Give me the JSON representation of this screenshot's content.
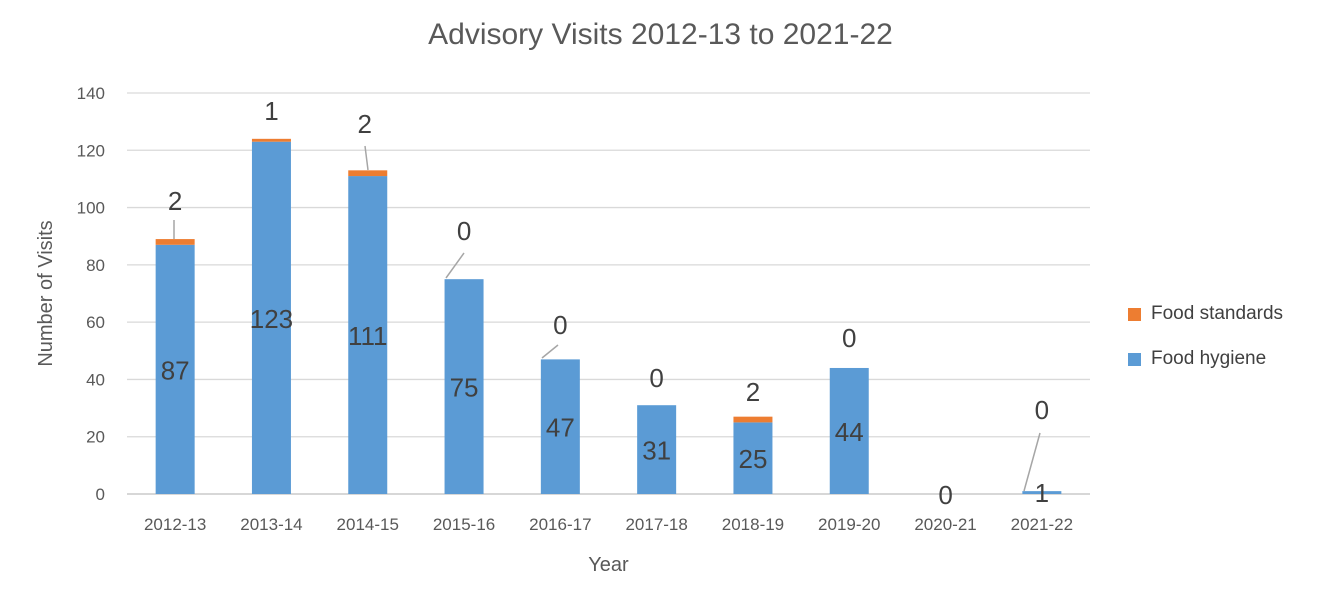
{
  "chart_data": {
    "type": "bar",
    "stacked": true,
    "title": "Advisory Visits 2012-13 to 2021-22",
    "xlabel": "Year",
    "ylabel": "Number of Visits",
    "ylim": [
      0,
      140
    ],
    "yticks": [
      "0",
      "20",
      "40",
      "60",
      "80",
      "100",
      "120",
      "140"
    ],
    "grid": true,
    "legend_position": "right",
    "categories": [
      "2012-13",
      "2013-14",
      "2014-15",
      "2015-16",
      "2016-17",
      "2017-18",
      "2018-19",
      "2019-20",
      "2020-21",
      "2021-22"
    ],
    "series": [
      {
        "name": "Food hygiene",
        "color": "#5B9BD5",
        "values": [
          87,
          123,
          111,
          75,
          47,
          31,
          25,
          44,
          0,
          1
        ],
        "labels": [
          "87",
          "123",
          "111",
          "75",
          "47",
          "31",
          "25",
          "44",
          "0",
          "1"
        ]
      },
      {
        "name": "Food standards",
        "color": "#ED7D31",
        "values": [
          2,
          1,
          2,
          0,
          0,
          0,
          2,
          0,
          0,
          0
        ],
        "labels": [
          "2",
          "1",
          "2",
          "0",
          "0",
          "0",
          "2",
          "0",
          "",
          "0"
        ]
      }
    ]
  },
  "legend": {
    "items": [
      {
        "label": "Food standards",
        "color": "#ED7D31"
      },
      {
        "label": "Food hygiene",
        "color": "#5B9BD5"
      }
    ]
  }
}
